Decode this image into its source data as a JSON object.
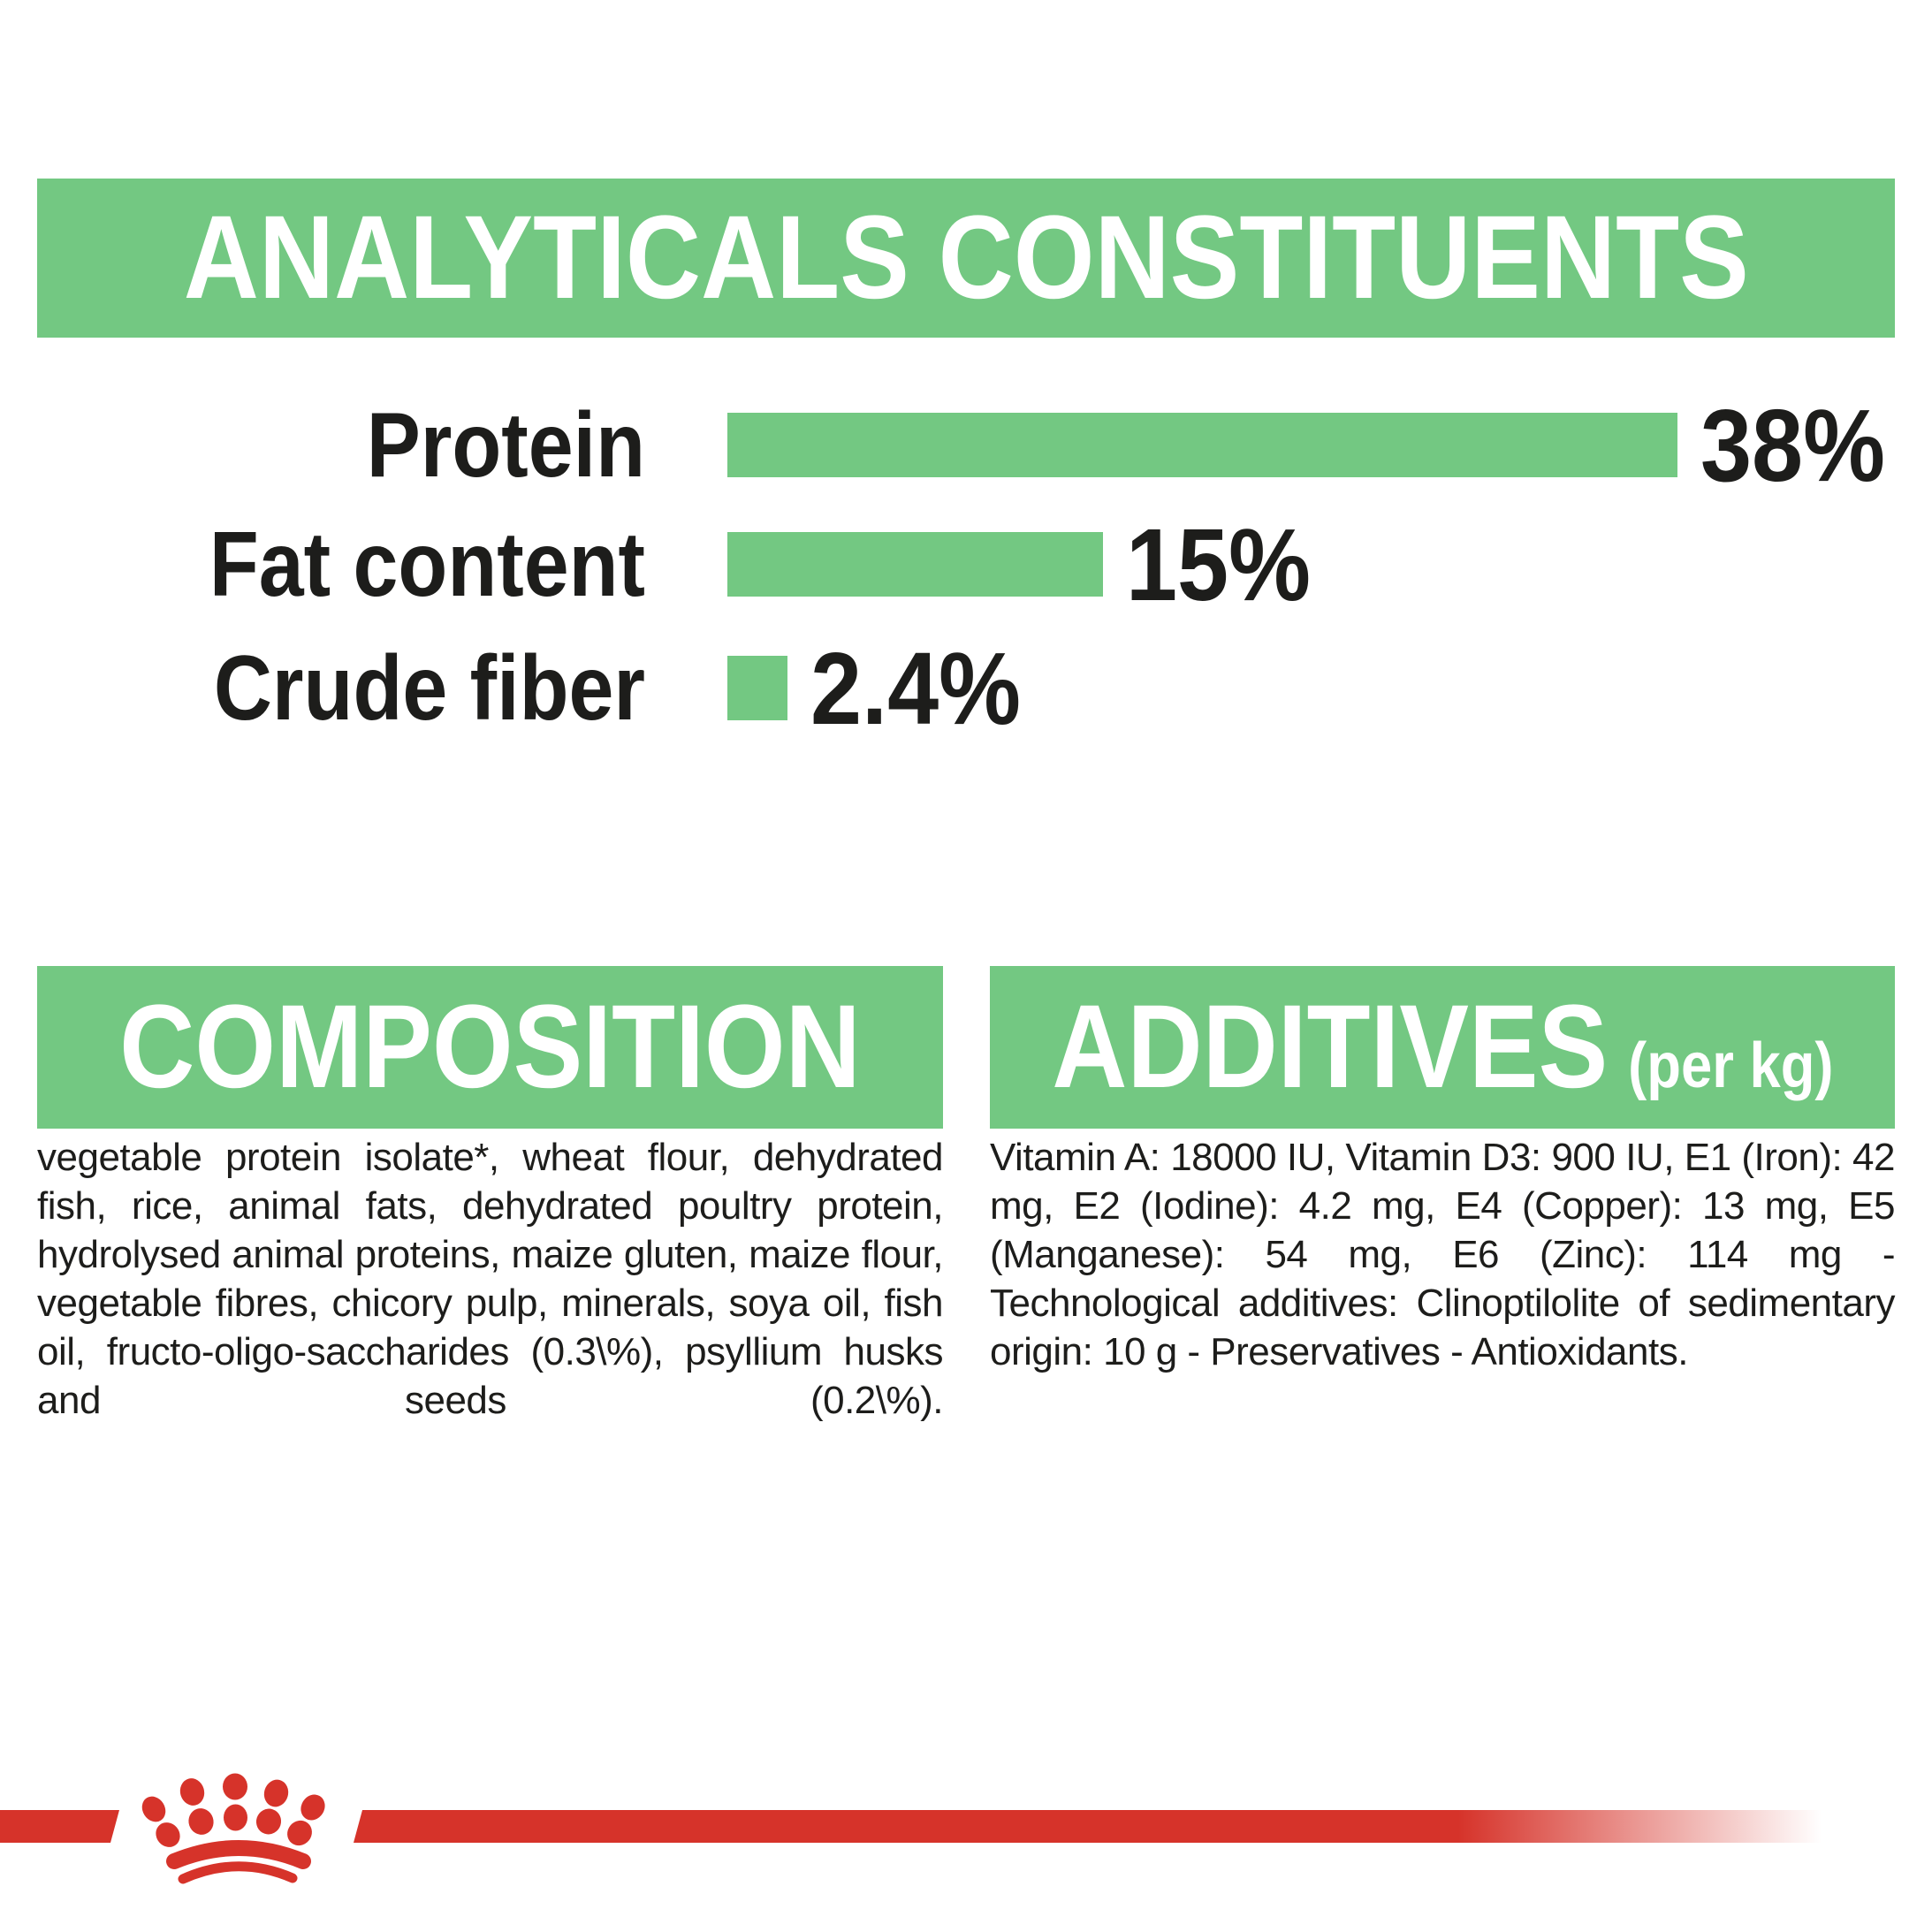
{
  "colors": {
    "green": "#73c882",
    "red": "#d6332a",
    "text": "#1d1d1b",
    "banner_text": "#ffffff",
    "background": "#ffffff"
  },
  "header": {
    "title": "ANALYTICALS CONSTITUENTS"
  },
  "chart_data": {
    "type": "bar",
    "orientation": "horizontal",
    "title": "ANALYTICALS CONSTITUENTS",
    "categories": [
      "Protein",
      "Fat content",
      "Crude fiber"
    ],
    "values": [
      38,
      15,
      2.4
    ],
    "value_labels": [
      "38%",
      "15%",
      "2.4%"
    ],
    "unit": "%",
    "xlim": [
      0,
      38
    ],
    "grid": false,
    "legend": false,
    "bar_color": "#73c882"
  },
  "composition": {
    "title": "COMPOSITION",
    "body": "vegetable protein isolate*, wheat flour, dehydrated fish, rice, animal fats, dehydrated poultry protein, hydrolysed animal proteins, maize gluten, maize flour, vegetable fibres, chicory pulp, minerals, soya oil, fish oil, fructo-oligo-saccharides (0.3\\%), psyllium husks and seeds (0.2\\%)."
  },
  "additives": {
    "title": "ADDITIVES",
    "title_suffix": "(per kg)",
    "body": "Vitamin A: 18000 IU, Vitamin D3: 900 IU, E1 (Iron): 42 mg, E2 (Iodine): 4.2 mg, E4 (Copper): 13 mg, E5 (Manganese): 54 mg, E6 (Zinc): 114 mg - Technological additives: Clinoptilolite of sedimentary origin: 10 g - Preservatives - Antioxidants."
  },
  "footer": {
    "logo": "royal-canin-crown"
  }
}
